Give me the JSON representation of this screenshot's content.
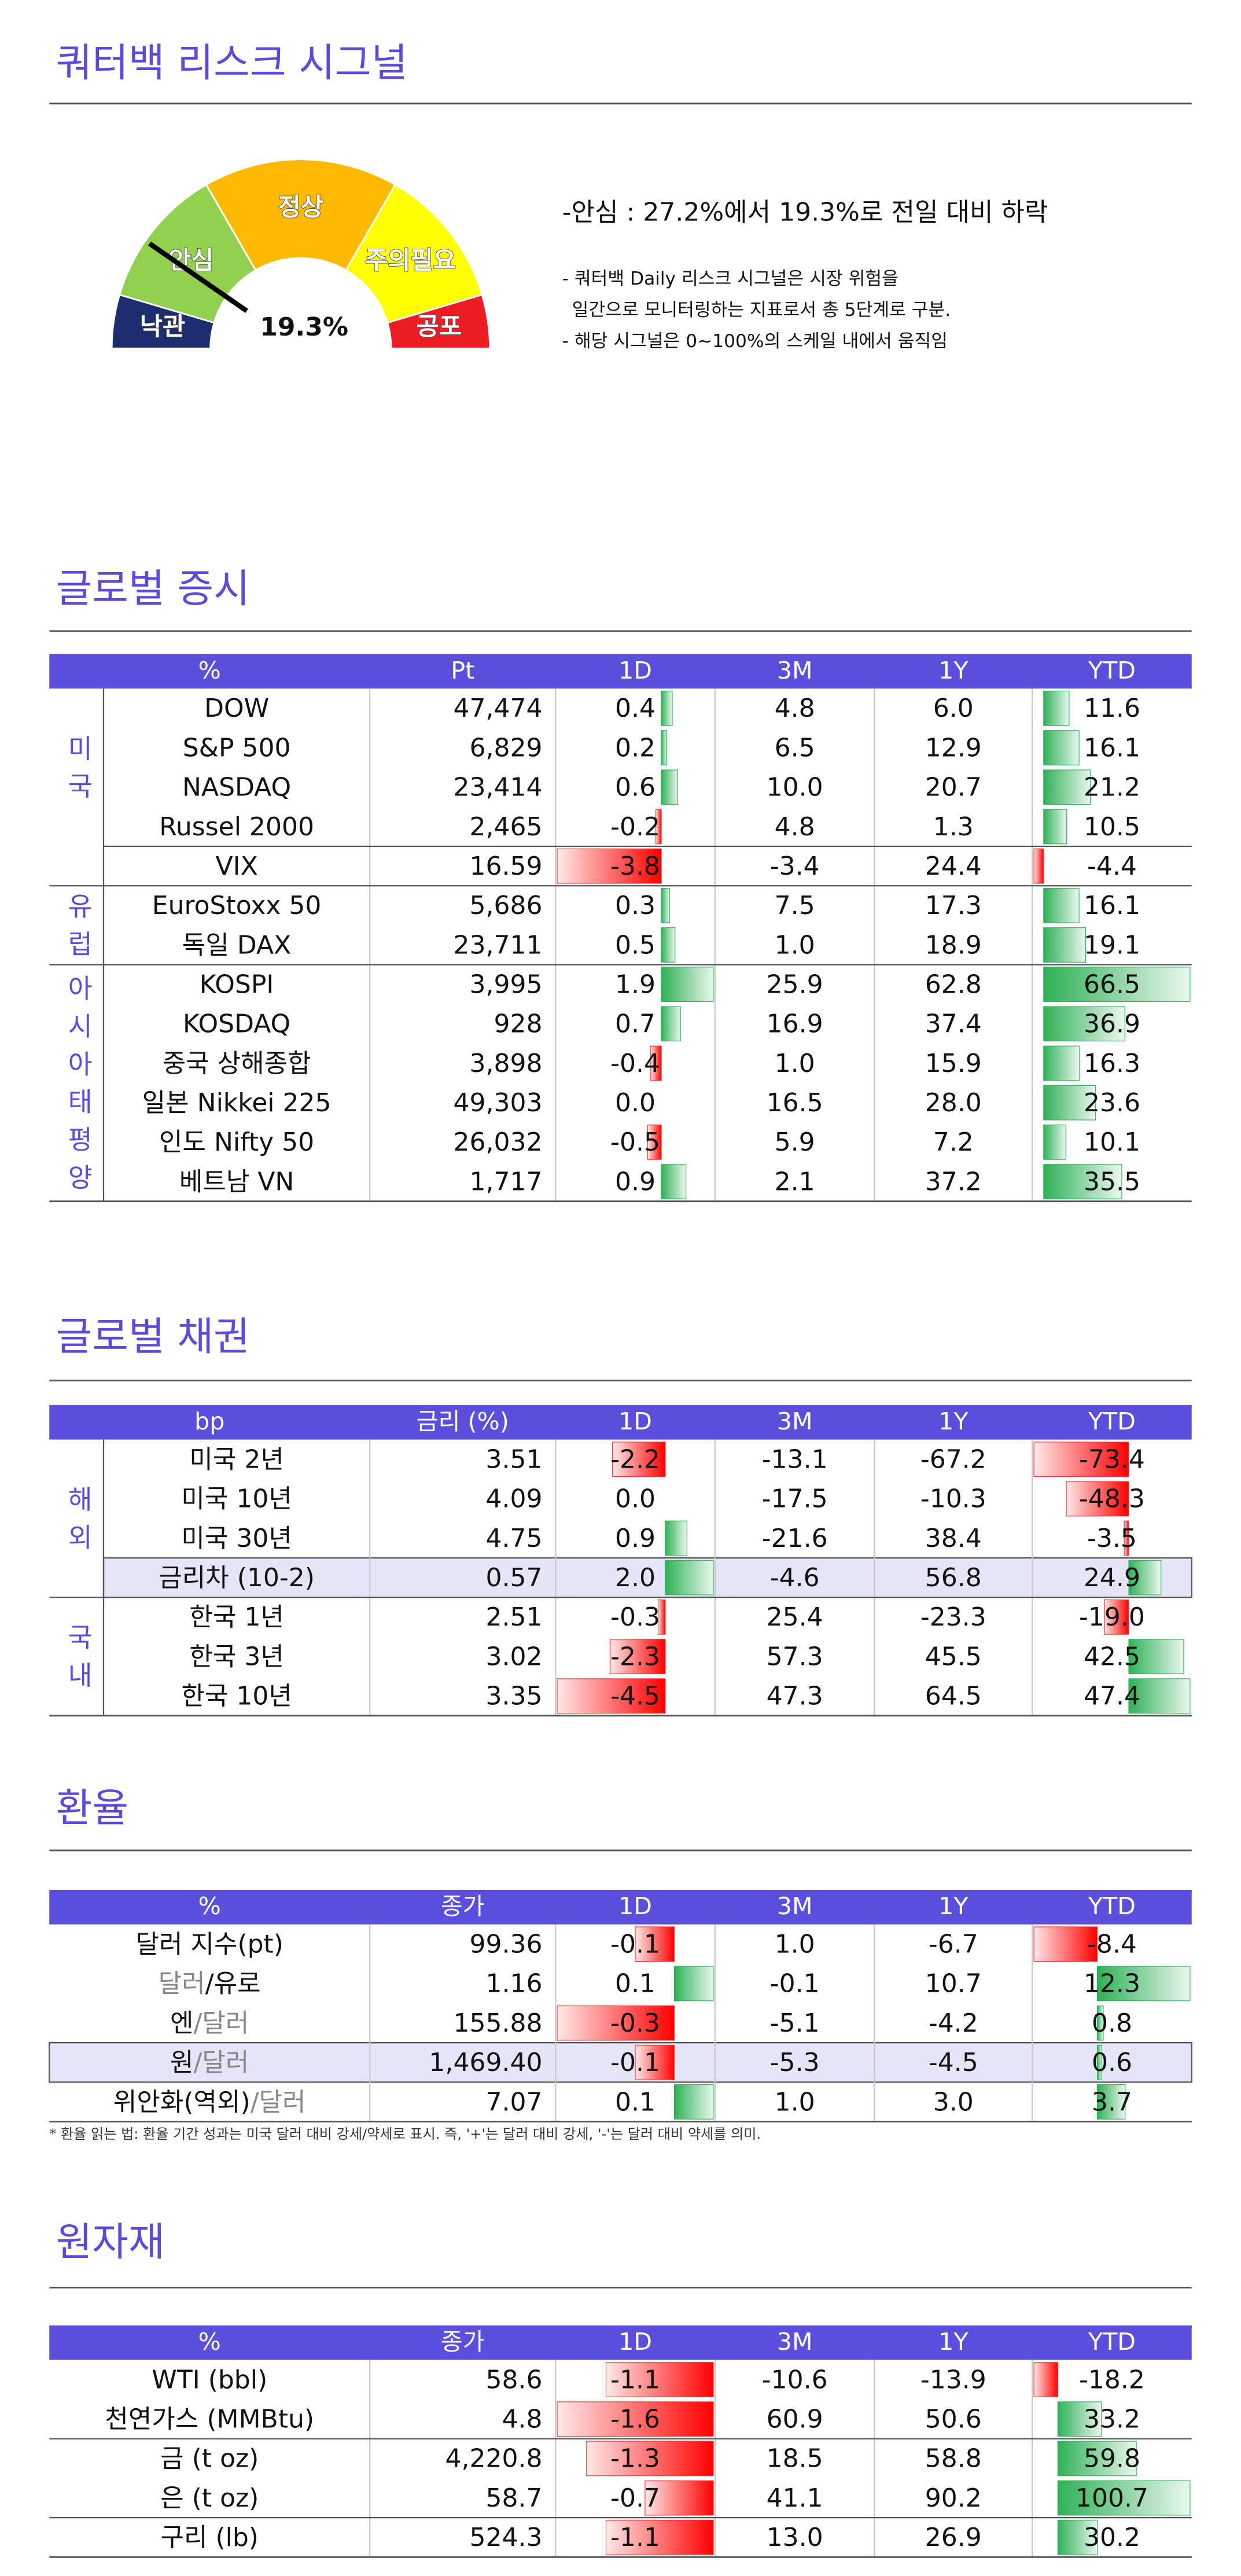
{
  "header": {
    "title": "쿼터백 리스크 시그널"
  },
  "risk_signal": {
    "value": 19.3,
    "value_label": "19.3%",
    "segments": [
      {
        "label": "낙관",
        "color": "#1d2d6e"
      },
      {
        "label": "안심",
        "color": "#92d050"
      },
      {
        "label": "정상",
        "color": "#ffb900"
      },
      {
        "label": "주의필요",
        "color": "#ffff00"
      },
      {
        "label": "공포",
        "color": "#ee1c25"
      }
    ],
    "summary": "-안심 : 27.2%에서 19.3%로 전일 대비 하락",
    "notes": [
      "- 쿼터백 Daily 리스크 시그널은 시장 위험을",
      "일간으로 모니터링하는 지표로서 총 5단계로 구분.",
      "- 해당 시그널은 0~100%의 스케일 내에서 움직임"
    ]
  },
  "tables": [
    {
      "title": "글로벌 증시",
      "header": [
        "%",
        "Pt",
        "1D",
        "3M",
        "1Y",
        "YTD"
      ],
      "groups": [
        {
          "label": "미국",
          "rows": [
            {
              "name": "DOW",
              "cells": [
                "47,474",
                "0.4",
                "4.8",
                "6.0",
                "11.6"
              ]
            },
            {
              "name": "S&P 500",
              "cells": [
                "6,829",
                "0.2",
                "6.5",
                "12.9",
                "16.1"
              ]
            },
            {
              "name": "NASDAQ",
              "cells": [
                "23,414",
                "0.6",
                "10.0",
                "20.7",
                "21.2"
              ]
            },
            {
              "name": "Russel 2000",
              "cells": [
                "2,465",
                "-0.2",
                "4.8",
                "1.3",
                "10.5"
              ]
            }
          ]
        },
        {
          "rows": [
            {
              "name": "VIX",
              "cells": [
                "16.59",
                "-3.8",
                "-3.4",
                "24.4",
                "-4.4"
              ]
            }
          ]
        },
        {
          "label": "유럽",
          "rows": [
            {
              "name": "EuroStoxx 50",
              "cells": [
                "5,686",
                "0.3",
                "7.5",
                "17.3",
                "16.1"
              ]
            },
            {
              "name": "독일 DAX",
              "cells": [
                "23,711",
                "0.5",
                "1.0",
                "18.9",
                "19.1"
              ]
            }
          ]
        },
        {
          "label": "아시아태평양",
          "rows": [
            {
              "name": "KOSPI",
              "cells": [
                "3,995",
                "1.9",
                "25.9",
                "62.8",
                "66.5"
              ]
            },
            {
              "name": "KOSDAQ",
              "cells": [
                "928",
                "0.7",
                "16.9",
                "37.4",
                "36.9"
              ]
            },
            {
              "name": "중국 상해종합",
              "cells": [
                "3,898",
                "-0.4",
                "1.0",
                "15.9",
                "16.3"
              ]
            },
            {
              "name": "일본 Nikkei 225",
              "cells": [
                "49,303",
                "0.0",
                "16.5",
                "28.0",
                "23.6"
              ]
            },
            {
              "name": "인도 Nifty 50",
              "cells": [
                "26,032",
                "-0.5",
                "5.9",
                "7.2",
                "10.1"
              ]
            },
            {
              "name": "베트남 VN",
              "cells": [
                "1,717",
                "0.9",
                "2.1",
                "37.2",
                "35.5"
              ]
            }
          ]
        }
      ]
    },
    {
      "title": "글로벌 채권",
      "header": [
        "bp",
        "금리 (%)",
        "1D",
        "3M",
        "1Y",
        "YTD"
      ],
      "groups": [
        {
          "label": "해외",
          "rows": [
            {
              "name": "미국 2년",
              "cells": [
                "3.51",
                "-2.2",
                "-13.1",
                "-67.2",
                "-73.4"
              ]
            },
            {
              "name": "미국 10년",
              "cells": [
                "4.09",
                "0.0",
                "-17.5",
                "-10.3",
                "-48.3"
              ]
            },
            {
              "name": "미국 30년",
              "cells": [
                "4.75",
                "0.9",
                "-21.6",
                "38.4",
                "-3.5"
              ]
            },
            {
              "name": "금리차 (10-2)",
              "cells": [
                "0.57",
                "2.0",
                "-4.6",
                "56.8",
                "24.9"
              ],
              "highlight": true
            }
          ]
        },
        {
          "label": "국내",
          "rows": [
            {
              "name": "한국 1년",
              "cells": [
                "2.51",
                "-0.3",
                "25.4",
                "-23.3",
                "-19.0"
              ]
            },
            {
              "name": "한국 3년",
              "cells": [
                "3.02",
                "-2.3",
                "57.3",
                "45.5",
                "42.5"
              ]
            },
            {
              "name": "한국 10년",
              "cells": [
                "3.35",
                "-4.5",
                "47.3",
                "64.5",
                "47.4"
              ]
            }
          ]
        }
      ]
    },
    {
      "title": "환율",
      "header": [
        "%",
        "종가",
        "1D",
        "3M",
        "1Y",
        "YTD"
      ],
      "groups": [
        {
          "rows": [
            {
              "name_parts": [
                {
                  "text": "달러 지수(pt)"
                }
              ],
              "cells": [
                "99.36",
                "-0.1",
                "1.0",
                "-6.7",
                "-8.4"
              ]
            },
            {
              "name_parts": [
                {
                  "text": "달러",
                  "muted": true
                },
                {
                  "text": "/유로"
                }
              ],
              "cells": [
                "1.16",
                "0.1",
                "-0.1",
                "10.7",
                "12.3"
              ]
            },
            {
              "name_parts": [
                {
                  "text": "엔"
                },
                {
                  "text": "/달러",
                  "muted": true
                }
              ],
              "cells": [
                "155.88",
                "-0.3",
                "-5.1",
                "-4.2",
                "0.8"
              ]
            },
            {
              "name_parts": [
                {
                  "text": "원"
                },
                {
                  "text": "/달러",
                  "muted": true
                }
              ],
              "cells": [
                "1,469.40",
                "-0.1",
                "-5.3",
                "-4.5",
                "0.6"
              ],
              "highlight": true
            },
            {
              "name_parts": [
                {
                  "text": "위안화(역외)"
                },
                {
                  "text": "/달러",
                  "muted": true
                }
              ],
              "cells": [
                "7.07",
                "0.1",
                "1.0",
                "3.0",
                "3.7"
              ]
            }
          ]
        }
      ],
      "footnote": "* 환율 읽는 법: 환율 기간 성과는 미국 달러 대비 강세/약세로 표시. 즉, '+'는 달러 대비 강세, '-'는 달러 대비 약세를 의미."
    },
    {
      "title": "원자재",
      "header": [
        "%",
        "종가",
        "1D",
        "3M",
        "1Y",
        "YTD"
      ],
      "groups": [
        {
          "rows": [
            {
              "name": "WTI (bbl)",
              "cells": [
                "58.6",
                "-1.1",
                "-10.6",
                "-13.9",
                "-18.2"
              ]
            },
            {
              "name": "천연가스 (MMBtu)",
              "cells": [
                "4.8",
                "-1.6",
                "60.9",
                "50.6",
                "33.2"
              ]
            }
          ]
        },
        {
          "rows": [
            {
              "name": "금 (t oz)",
              "cells": [
                "4,220.8",
                "-1.3",
                "18.5",
                "58.8",
                "59.8"
              ]
            },
            {
              "name": "은 (t oz)",
              "cells": [
                "58.7",
                "-0.7",
                "41.1",
                "90.2",
                "100.7"
              ]
            }
          ]
        },
        {
          "rows": [
            {
              "name": "구리 (lb)",
              "cells": [
                "524.3",
                "-1.1",
                "13.0",
                "26.9",
                "30.2"
              ]
            }
          ]
        }
      ]
    }
  ]
}
